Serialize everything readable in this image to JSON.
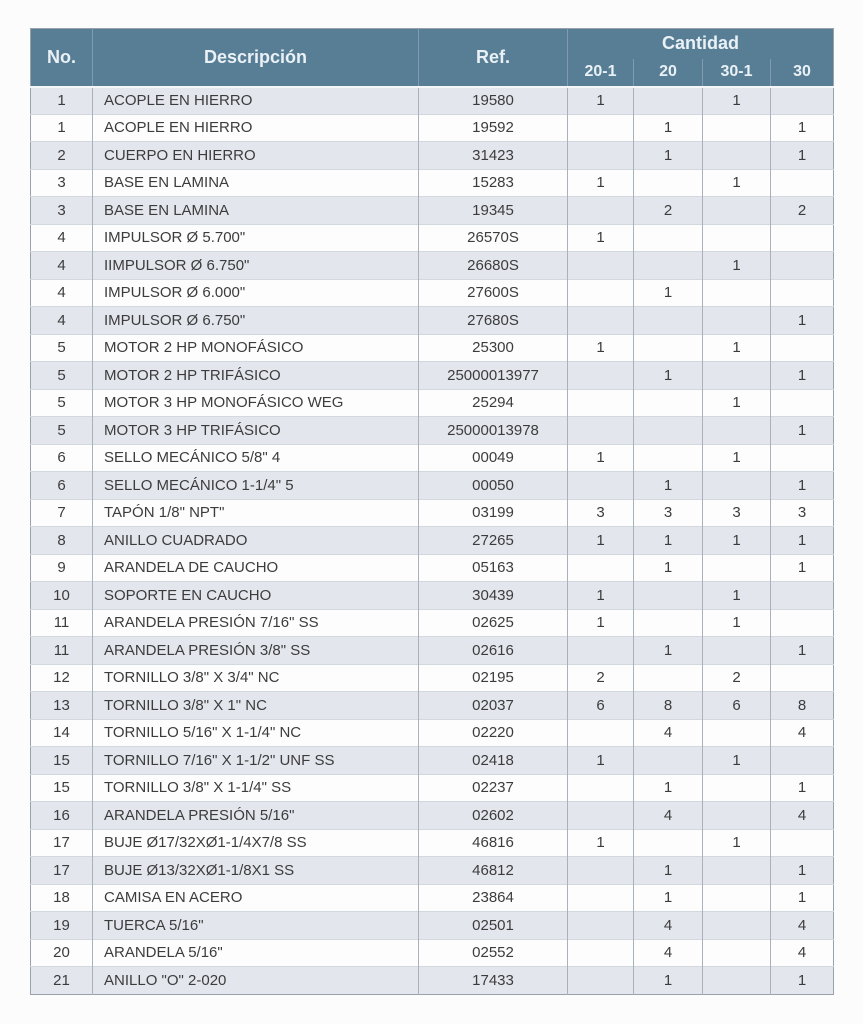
{
  "colors": {
    "header_bg": "#587e95",
    "header_text": "#eaf1f6",
    "row_shaded": "#e3e6ed",
    "row_plain": "#fdfdfd",
    "body_text": "#3c3c3c",
    "border": "#a9b1bb"
  },
  "header": {
    "no": "No.",
    "descripcion": "Descripción",
    "ref": "Ref.",
    "cantidad": "Cantidad",
    "qty_columns": [
      "20-1",
      "20",
      "30-1",
      "30"
    ]
  },
  "table": {
    "rows": [
      {
        "no": "1",
        "descripcion": "ACOPLE EN HIERRO",
        "ref": "19580",
        "qty": [
          "1",
          "",
          "1",
          ""
        ]
      },
      {
        "no": "1",
        "descripcion": "ACOPLE EN HIERRO",
        "ref": "19592",
        "qty": [
          "",
          "1",
          "",
          "1"
        ]
      },
      {
        "no": "2",
        "descripcion": "CUERPO EN HIERRO",
        "ref": "31423",
        "qty": [
          "",
          "1",
          "",
          "1"
        ]
      },
      {
        "no": "3",
        "descripcion": "BASE EN LAMINA",
        "ref": "15283",
        "qty": [
          "1",
          "",
          "1",
          ""
        ]
      },
      {
        "no": "3",
        "descripcion": "BASE EN LAMINA",
        "ref": "19345",
        "qty": [
          "",
          "2",
          "",
          "2"
        ]
      },
      {
        "no": "4",
        "descripcion": "IMPULSOR Ø 5.700\"",
        "ref": "26570S",
        "qty": [
          "1",
          "",
          "",
          ""
        ]
      },
      {
        "no": "4",
        "descripcion": "IIMPULSOR Ø 6.750\"",
        "ref": "26680S",
        "qty": [
          "",
          "",
          "1",
          ""
        ]
      },
      {
        "no": "4",
        "descripcion": "IMPULSOR Ø 6.000\"",
        "ref": "27600S",
        "qty": [
          "",
          "1",
          "",
          ""
        ]
      },
      {
        "no": "4",
        "descripcion": "IMPULSOR Ø 6.750\"",
        "ref": "27680S",
        "qty": [
          "",
          "",
          "",
          "1"
        ]
      },
      {
        "no": "5",
        "descripcion": "MOTOR 2 HP MONOFÁSICO",
        "ref": "25300",
        "qty": [
          "1",
          "",
          "1",
          ""
        ]
      },
      {
        "no": "5",
        "descripcion": "MOTOR 2 HP TRIFÁSICO",
        "ref": "25000013977",
        "qty": [
          "",
          "1",
          "",
          "1"
        ]
      },
      {
        "no": "5",
        "descripcion": "MOTOR 3 HP MONOFÁSICO WEG",
        "ref": "25294",
        "qty": [
          "",
          "",
          "1",
          ""
        ]
      },
      {
        "no": "5",
        "descripcion": "MOTOR 3 HP TRIFÁSICO",
        "ref": "25000013978",
        "qty": [
          "",
          "",
          "",
          "1"
        ]
      },
      {
        "no": "6",
        "descripcion": "SELLO MECÁNICO 5/8\"  4",
        "ref": "00049",
        "qty": [
          "1",
          "",
          "1",
          ""
        ]
      },
      {
        "no": "6",
        "descripcion": "SELLO MECÁNICO 1-1/4\" 5",
        "ref": "00050",
        "qty": [
          "",
          "1",
          "",
          "1"
        ]
      },
      {
        "no": "7",
        "descripcion": "TAPÓN 1/8\" NPT\"",
        "ref": "03199",
        "qty": [
          "3",
          "3",
          "3",
          "3"
        ]
      },
      {
        "no": "8",
        "descripcion": "ANILLO CUADRADO",
        "ref": "27265",
        "qty": [
          "1",
          "1",
          "1",
          "1"
        ]
      },
      {
        "no": "9",
        "descripcion": "ARANDELA DE CAUCHO",
        "ref": "05163",
        "qty": [
          "",
          "1",
          "",
          "1"
        ]
      },
      {
        "no": "10",
        "descripcion": "SOPORTE EN CAUCHO",
        "ref": "30439",
        "qty": [
          "1",
          "",
          "1",
          ""
        ]
      },
      {
        "no": "11",
        "descripcion": "ARANDELA PRESIÓN 7/16\" SS",
        "ref": "02625",
        "qty": [
          "1",
          "",
          "1",
          ""
        ]
      },
      {
        "no": "11",
        "descripcion": "ARANDELA PRESIÓN  3/8\" SS",
        "ref": "02616",
        "qty": [
          "",
          "1",
          "",
          "1"
        ]
      },
      {
        "no": "12",
        "descripcion": "TORNILLO 3/8\" X 3/4\" NC",
        "ref": "02195",
        "qty": [
          "2",
          "",
          "2",
          ""
        ]
      },
      {
        "no": "13",
        "descripcion": "TORNILLO 3/8\" X 1\" NC",
        "ref": "02037",
        "qty": [
          "6",
          "8",
          "6",
          "8"
        ]
      },
      {
        "no": "14",
        "descripcion": "TORNILLO 5/16\" X 1-1/4\" NC",
        "ref": "02220",
        "qty": [
          "",
          "4",
          "",
          "4"
        ]
      },
      {
        "no": "15",
        "descripcion": "TORNILLO 7/16\" X 1-1/2\" UNF SS",
        "ref": "02418",
        "qty": [
          "1",
          "",
          "1",
          ""
        ]
      },
      {
        "no": "15",
        "descripcion": "TORNILLO 3/8\" X 1-1/4\" SS",
        "ref": "02237",
        "qty": [
          "",
          "1",
          "",
          "1"
        ]
      },
      {
        "no": "16",
        "descripcion": "ARANDELA PRESIÓN 5/16\"",
        "ref": "02602",
        "qty": [
          "",
          "4",
          "",
          "4"
        ]
      },
      {
        "no": "17",
        "descripcion": "BUJE Ø17/32XØ1-1/4X7/8 SS",
        "ref": "46816",
        "qty": [
          "1",
          "",
          "1",
          ""
        ]
      },
      {
        "no": "17",
        "descripcion": "BUJE Ø13/32XØ1-1/8X1 SS",
        "ref": "46812",
        "qty": [
          "",
          "1",
          "",
          "1"
        ]
      },
      {
        "no": "18",
        "descripcion": "CAMISA EN ACERO",
        "ref": "23864",
        "qty": [
          "",
          "1",
          "",
          "1"
        ]
      },
      {
        "no": "19",
        "descripcion": "TUERCA 5/16\"",
        "ref": "02501",
        "qty": [
          "",
          "4",
          "",
          "4"
        ]
      },
      {
        "no": "20",
        "descripcion": "ARANDELA 5/16\"",
        "ref": "02552",
        "qty": [
          "",
          "4",
          "",
          "4"
        ]
      },
      {
        "no": "21",
        "descripcion": "ANILLO \"O\" 2-020",
        "ref": "17433",
        "qty": [
          "",
          "1",
          "",
          "1"
        ]
      }
    ]
  }
}
